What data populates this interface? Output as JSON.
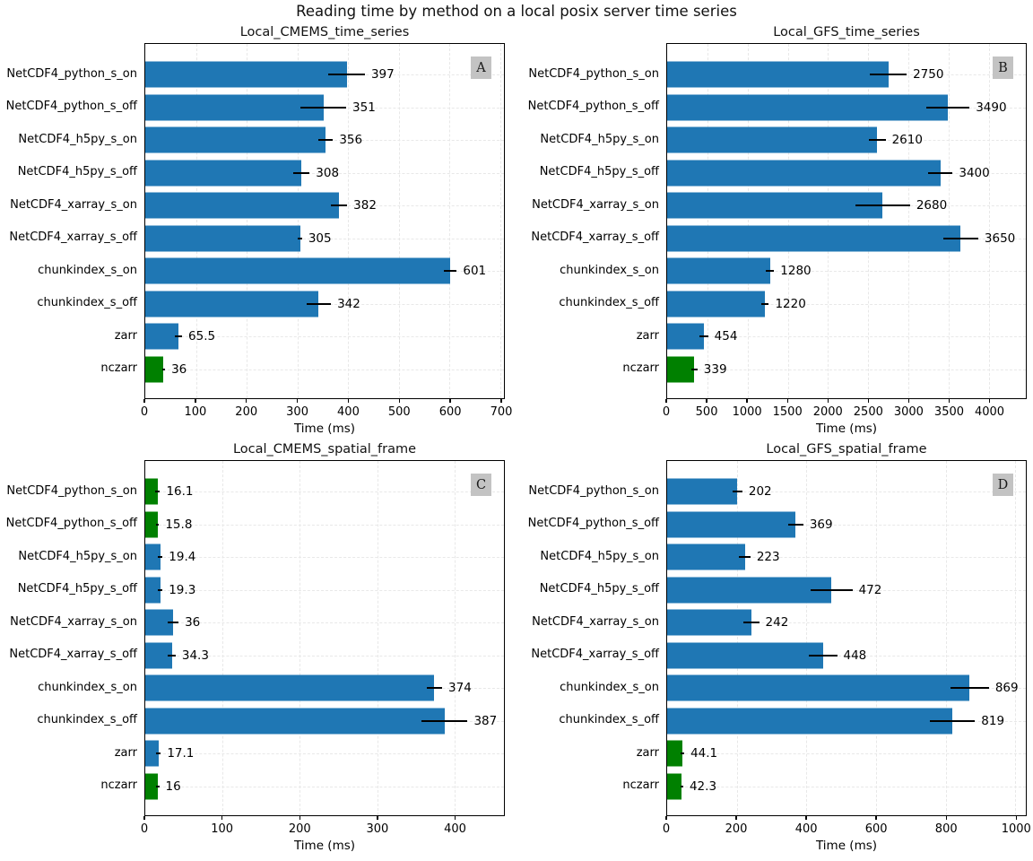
{
  "figure_title": "Reading time by method on a local posix server time series",
  "colors": {
    "bar_default": "#1f77b4",
    "bar_highlight": "#008000",
    "error_bar": "#000000",
    "grid": "#e8e8e8",
    "spine": "#000000",
    "panel_label_bg": "#c3c3c3",
    "text": "#000000",
    "background": "#ffffff"
  },
  "chart_data": [
    {
      "panel_label": "A",
      "type": "bar",
      "orientation": "horizontal",
      "title": "Local_CMEMS_time_series",
      "xlabel": "Time (ms)",
      "xlim": [
        0,
        707
      ],
      "xticks": [
        0,
        100,
        200,
        300,
        400,
        500,
        600,
        700
      ],
      "grid": true,
      "legend": "none",
      "categories": [
        "NetCDF4_python_s_on",
        "NetCDF4_python_s_off",
        "NetCDF4_h5py_s_on",
        "NetCDF4_h5py_s_off",
        "NetCDF4_xarray_s_on",
        "NetCDF4_xarray_s_off",
        "chunkindex_s_on",
        "chunkindex_s_off",
        "zarr",
        "nczarr"
      ],
      "values": [
        397,
        351,
        356,
        308,
        382,
        305,
        601,
        342,
        65.5,
        36
      ],
      "errors": [
        36,
        45,
        14,
        16,
        16,
        4,
        13,
        24,
        7,
        3
      ],
      "bar_colors": [
        "#1f77b4",
        "#1f77b4",
        "#1f77b4",
        "#1f77b4",
        "#1f77b4",
        "#1f77b4",
        "#1f77b4",
        "#1f77b4",
        "#1f77b4",
        "#008000"
      ]
    },
    {
      "panel_label": "B",
      "type": "bar",
      "orientation": "horizontal",
      "title": "Local_GFS_time_series",
      "xlabel": "Time (ms)",
      "xlim": [
        0,
        4460
      ],
      "xticks": [
        0,
        500,
        1000,
        1500,
        2000,
        2500,
        3000,
        3500,
        4000
      ],
      "grid": true,
      "legend": "none",
      "categories": [
        "NetCDF4_python_s_on",
        "NetCDF4_python_s_off",
        "NetCDF4_h5py_s_on",
        "NetCDF4_h5py_s_off",
        "NetCDF4_xarray_s_on",
        "NetCDF4_xarray_s_off",
        "chunkindex_s_on",
        "chunkindex_s_off",
        "zarr",
        "nczarr"
      ],
      "values": [
        2750,
        3490,
        2610,
        3400,
        2680,
        3650,
        1280,
        1220,
        454,
        339
      ],
      "errors": [
        228,
        270,
        106,
        150,
        340,
        218,
        50,
        45,
        55,
        38
      ],
      "bar_colors": [
        "#1f77b4",
        "#1f77b4",
        "#1f77b4",
        "#1f77b4",
        "#1f77b4",
        "#1f77b4",
        "#1f77b4",
        "#1f77b4",
        "#1f77b4",
        "#008000"
      ]
    },
    {
      "panel_label": "C",
      "type": "bar",
      "orientation": "horizontal",
      "title": "Local_CMEMS_spatial_frame",
      "xlabel": "Time (ms)",
      "xlim": [
        0,
        464
      ],
      "xticks": [
        0,
        100,
        200,
        300,
        400
      ],
      "grid": true,
      "legend": "none",
      "categories": [
        "NetCDF4_python_s_on",
        "NetCDF4_python_s_off",
        "NetCDF4_h5py_s_on",
        "NetCDF4_h5py_s_off",
        "NetCDF4_xarray_s_on",
        "NetCDF4_xarray_s_off",
        "chunkindex_s_on",
        "chunkindex_s_off",
        "zarr",
        "nczarr"
      ],
      "values": [
        16.1,
        15.8,
        19.4,
        19.3,
        36,
        34.3,
        374,
        387,
        17.1,
        16
      ],
      "errors": [
        3,
        2,
        3,
        3,
        7,
        5,
        10,
        30,
        3,
        2
      ],
      "bar_colors": [
        "#008000",
        "#008000",
        "#1f77b4",
        "#1f77b4",
        "#1f77b4",
        "#1f77b4",
        "#1f77b4",
        "#1f77b4",
        "#1f77b4",
        "#008000"
      ]
    },
    {
      "panel_label": "D",
      "type": "bar",
      "orientation": "horizontal",
      "title": "Local_GFS_spatial_frame",
      "xlabel": "Time (ms)",
      "xlim": [
        0,
        1030
      ],
      "xticks": [
        0,
        200,
        400,
        600,
        800,
        1000
      ],
      "grid": true,
      "legend": "none",
      "categories": [
        "NetCDF4_python_s_on",
        "NetCDF4_python_s_off",
        "NetCDF4_h5py_s_on",
        "NetCDF4_h5py_s_off",
        "NetCDF4_xarray_s_on",
        "NetCDF4_xarray_s_off",
        "chunkindex_s_on",
        "chunkindex_s_off",
        "zarr",
        "nczarr"
      ],
      "values": [
        202,
        369,
        223,
        472,
        242,
        448,
        869,
        819,
        44.1,
        42.3
      ],
      "errors": [
        14,
        22,
        16,
        60,
        22,
        40,
        55,
        65,
        5,
        4
      ],
      "bar_colors": [
        "#1f77b4",
        "#1f77b4",
        "#1f77b4",
        "#1f77b4",
        "#1f77b4",
        "#1f77b4",
        "#1f77b4",
        "#1f77b4",
        "#008000",
        "#008000"
      ]
    }
  ]
}
